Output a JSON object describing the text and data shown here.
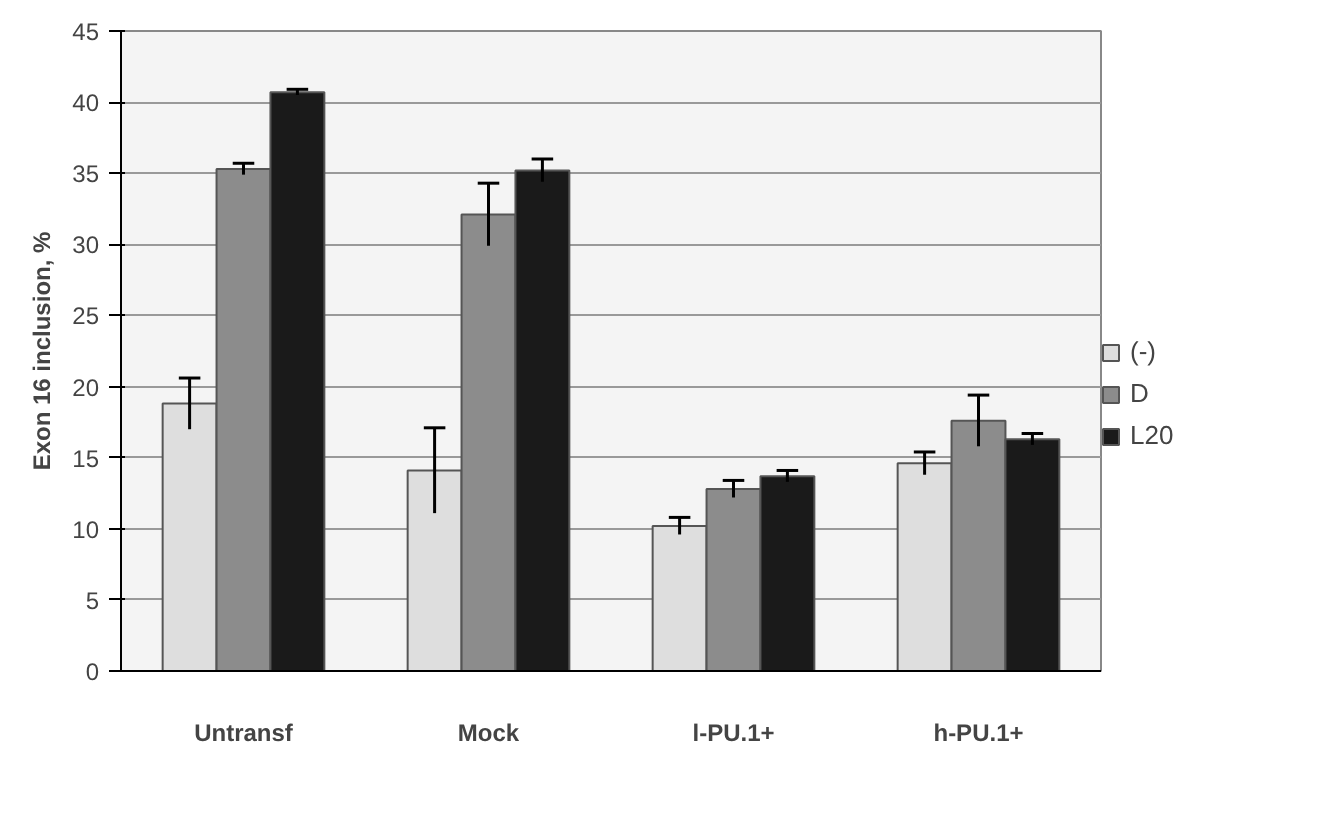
{
  "chart_data": {
    "type": "bar",
    "ylabel": "Exon 16 inclusion, %",
    "categories": [
      "Untransf",
      "Mock",
      "l-PU.1+",
      "h-PU.1+"
    ],
    "series": [
      {
        "name": "(-)",
        "color": "#dedede",
        "values": [
          18.8,
          14.1,
          10.2,
          14.6
        ],
        "errors": [
          1.8,
          3.0,
          0.6,
          0.8
        ]
      },
      {
        "name": "D",
        "color": "#8c8c8c",
        "values": [
          35.3,
          32.1,
          12.8,
          17.6
        ],
        "errors": [
          0.4,
          2.2,
          0.6,
          1.8
        ]
      },
      {
        "name": "L20",
        "color": "#1a1a1a",
        "values": [
          40.7,
          35.2,
          13.7,
          16.3
        ],
        "errors": [
          0.2,
          0.8,
          0.4,
          0.4
        ]
      }
    ],
    "ylim": [
      0,
      45
    ],
    "yticks": [
      0,
      5,
      10,
      15,
      20,
      25,
      30,
      35,
      40,
      45
    ],
    "grid": "y",
    "legend": "right"
  }
}
